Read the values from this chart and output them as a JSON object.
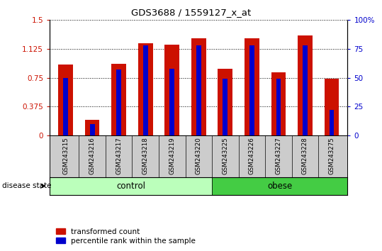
{
  "title": "GDS3688 / 1559127_x_at",
  "samples": [
    "GSM243215",
    "GSM243216",
    "GSM243217",
    "GSM243218",
    "GSM243219",
    "GSM243220",
    "GSM243225",
    "GSM243226",
    "GSM243227",
    "GSM243228",
    "GSM243275"
  ],
  "transformed_count": [
    0.92,
    0.2,
    0.93,
    1.2,
    1.18,
    1.26,
    0.87,
    1.26,
    0.82,
    1.3,
    0.74
  ],
  "percentile_rank_pct": [
    50,
    10,
    57,
    78,
    58,
    78,
    49,
    78,
    49,
    78,
    22
  ],
  "red_color": "#cc1100",
  "blue_color": "#0000cc",
  "bar_width": 0.55,
  "blue_bar_width": 0.18,
  "ylim_left": [
    0,
    1.5
  ],
  "ylim_right": [
    0,
    100
  ],
  "yticks_left": [
    0,
    0.375,
    0.75,
    1.125,
    1.5
  ],
  "ytick_labels_left": [
    "0",
    "0.375",
    "0.75",
    "1.125",
    "1.5"
  ],
  "yticks_right": [
    0,
    25,
    50,
    75,
    100
  ],
  "ytick_labels_right": [
    "0",
    "25",
    "50",
    "75",
    "100%"
  ],
  "control_count": 6,
  "obese_count": 5,
  "control_color": "#bbffbb",
  "obese_color": "#44cc44",
  "disease_label": "disease state",
  "control_label": "control",
  "obese_label": "obese",
  "legend_red": "transformed count",
  "legend_blue": "percentile rank within the sample"
}
